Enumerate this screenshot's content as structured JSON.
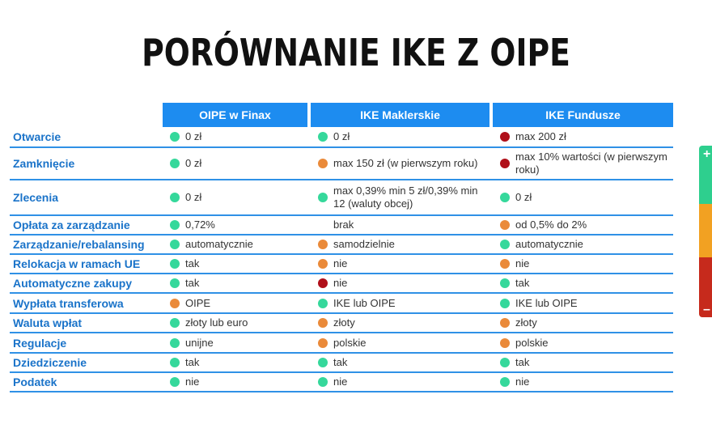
{
  "title": "PORÓWNANIE IKE Z OIPE",
  "colors": {
    "green": "#35d89b",
    "orange": "#ea8a3a",
    "red": "#b0101a",
    "header": "#1d8cf0"
  },
  "columns": [
    "OIPE w Finax",
    "IKE Maklerskie",
    "IKE Fundusze"
  ],
  "legend": {
    "plus": "+",
    "minus": "–"
  },
  "rows": [
    {
      "label": "Otwarcie",
      "cells": [
        {
          "status": "green",
          "text": "0 zł"
        },
        {
          "status": "green",
          "text": "0 zł"
        },
        {
          "status": "red",
          "text": "max 200 zł"
        }
      ]
    },
    {
      "label": "Zamknięcie",
      "cells": [
        {
          "status": "green",
          "text": "0 zł"
        },
        {
          "status": "orange",
          "text": "max 150 zł (w pierwszym roku)"
        },
        {
          "status": "red",
          "text": "max 10% wartości (w pierwszym roku)"
        }
      ]
    },
    {
      "label": "Zlecenia",
      "cells": [
        {
          "status": "green",
          "text": "0 zł"
        },
        {
          "status": "green",
          "text": "max 0,39% min 5 zł/0,39% min 12 (waluty obcej)"
        },
        {
          "status": "green",
          "text": "0 zł"
        }
      ]
    },
    {
      "label": "Opłata za zarządzanie",
      "cells": [
        {
          "status": "green",
          "text": "0,72%"
        },
        {
          "status": "none",
          "text": "brak"
        },
        {
          "status": "orange",
          "text": "od 0,5% do 2%"
        }
      ]
    },
    {
      "label": "Zarządzanie/rebalansing",
      "cells": [
        {
          "status": "green",
          "text": "automatycznie"
        },
        {
          "status": "orange",
          "text": "samodzielnie"
        },
        {
          "status": "green",
          "text": "automatycznie"
        }
      ]
    },
    {
      "label": "Relokacja w ramach UE",
      "cells": [
        {
          "status": "green",
          "text": "tak"
        },
        {
          "status": "orange",
          "text": "nie"
        },
        {
          "status": "orange",
          "text": "nie"
        }
      ]
    },
    {
      "label": "Automatyczne zakupy",
      "cells": [
        {
          "status": "green",
          "text": "tak"
        },
        {
          "status": "red",
          "text": "nie"
        },
        {
          "status": "green",
          "text": "tak"
        }
      ]
    },
    {
      "label": "Wypłata transferowa",
      "cells": [
        {
          "status": "orange",
          "text": "OIPE"
        },
        {
          "status": "green",
          "text": "IKE lub OIPE"
        },
        {
          "status": "green",
          "text": "IKE lub OIPE"
        }
      ]
    },
    {
      "label": "Waluta wpłat",
      "cells": [
        {
          "status": "green",
          "text": "złoty lub euro"
        },
        {
          "status": "orange",
          "text": "złoty"
        },
        {
          "status": "orange",
          "text": "złoty"
        }
      ]
    },
    {
      "label": "Regulacje",
      "cells": [
        {
          "status": "green",
          "text": "unijne"
        },
        {
          "status": "orange",
          "text": "polskie"
        },
        {
          "status": "orange",
          "text": "polskie"
        }
      ]
    },
    {
      "label": "Dziedziczenie",
      "cells": [
        {
          "status": "green",
          "text": "tak"
        },
        {
          "status": "green",
          "text": "tak"
        },
        {
          "status": "green",
          "text": "tak"
        }
      ]
    },
    {
      "label": "Podatek",
      "cells": [
        {
          "status": "green",
          "text": "nie"
        },
        {
          "status": "green",
          "text": "nie"
        },
        {
          "status": "green",
          "text": "nie"
        }
      ]
    }
  ]
}
